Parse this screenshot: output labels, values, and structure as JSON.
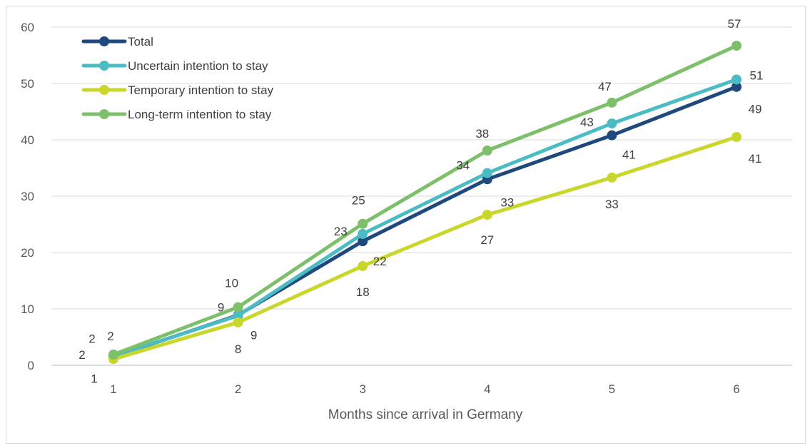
{
  "chart_data": {
    "type": "line",
    "xlabel": "Months since arrival in Germany",
    "ylabel": "",
    "x": [
      1,
      2,
      3,
      4,
      5,
      6
    ],
    "categories": [
      "1",
      "2",
      "3",
      "4",
      "5",
      "6"
    ],
    "ylim": [
      0,
      60
    ],
    "yticks": [
      "0",
      "10",
      "20",
      "30",
      "40",
      "50",
      "60"
    ],
    "grid": "horizontal",
    "legend_position": "top-left",
    "series": [
      {
        "name": "Total",
        "color": "#1f497d",
        "values": [
          1.5,
          8.9,
          22.0,
          33.0,
          40.8,
          49.4
        ],
        "labels": [
          "2",
          "9",
          "22",
          "33",
          "41",
          "49"
        ]
      },
      {
        "name": "Uncertain intention to stay",
        "color": "#4bbcc4",
        "values": [
          1.6,
          8.8,
          23.3,
          34.1,
          42.9,
          50.7
        ],
        "labels": [
          "2",
          "9",
          "23",
          "34",
          "43",
          "51"
        ]
      },
      {
        "name": "Temporary intention to stay",
        "color": "#c9d62c",
        "values": [
          1.1,
          7.6,
          17.6,
          26.7,
          33.3,
          40.5
        ],
        "labels": [
          "1",
          "8",
          "18",
          "27",
          "33",
          "41"
        ]
      },
      {
        "name": "Long-term intention to stay",
        "color": "#7dbf6a",
        "values": [
          1.9,
          10.3,
          25.1,
          38.1,
          46.6,
          56.7
        ],
        "labels": [
          "2",
          "10",
          "25",
          "38",
          "47",
          "57"
        ]
      }
    ]
  }
}
